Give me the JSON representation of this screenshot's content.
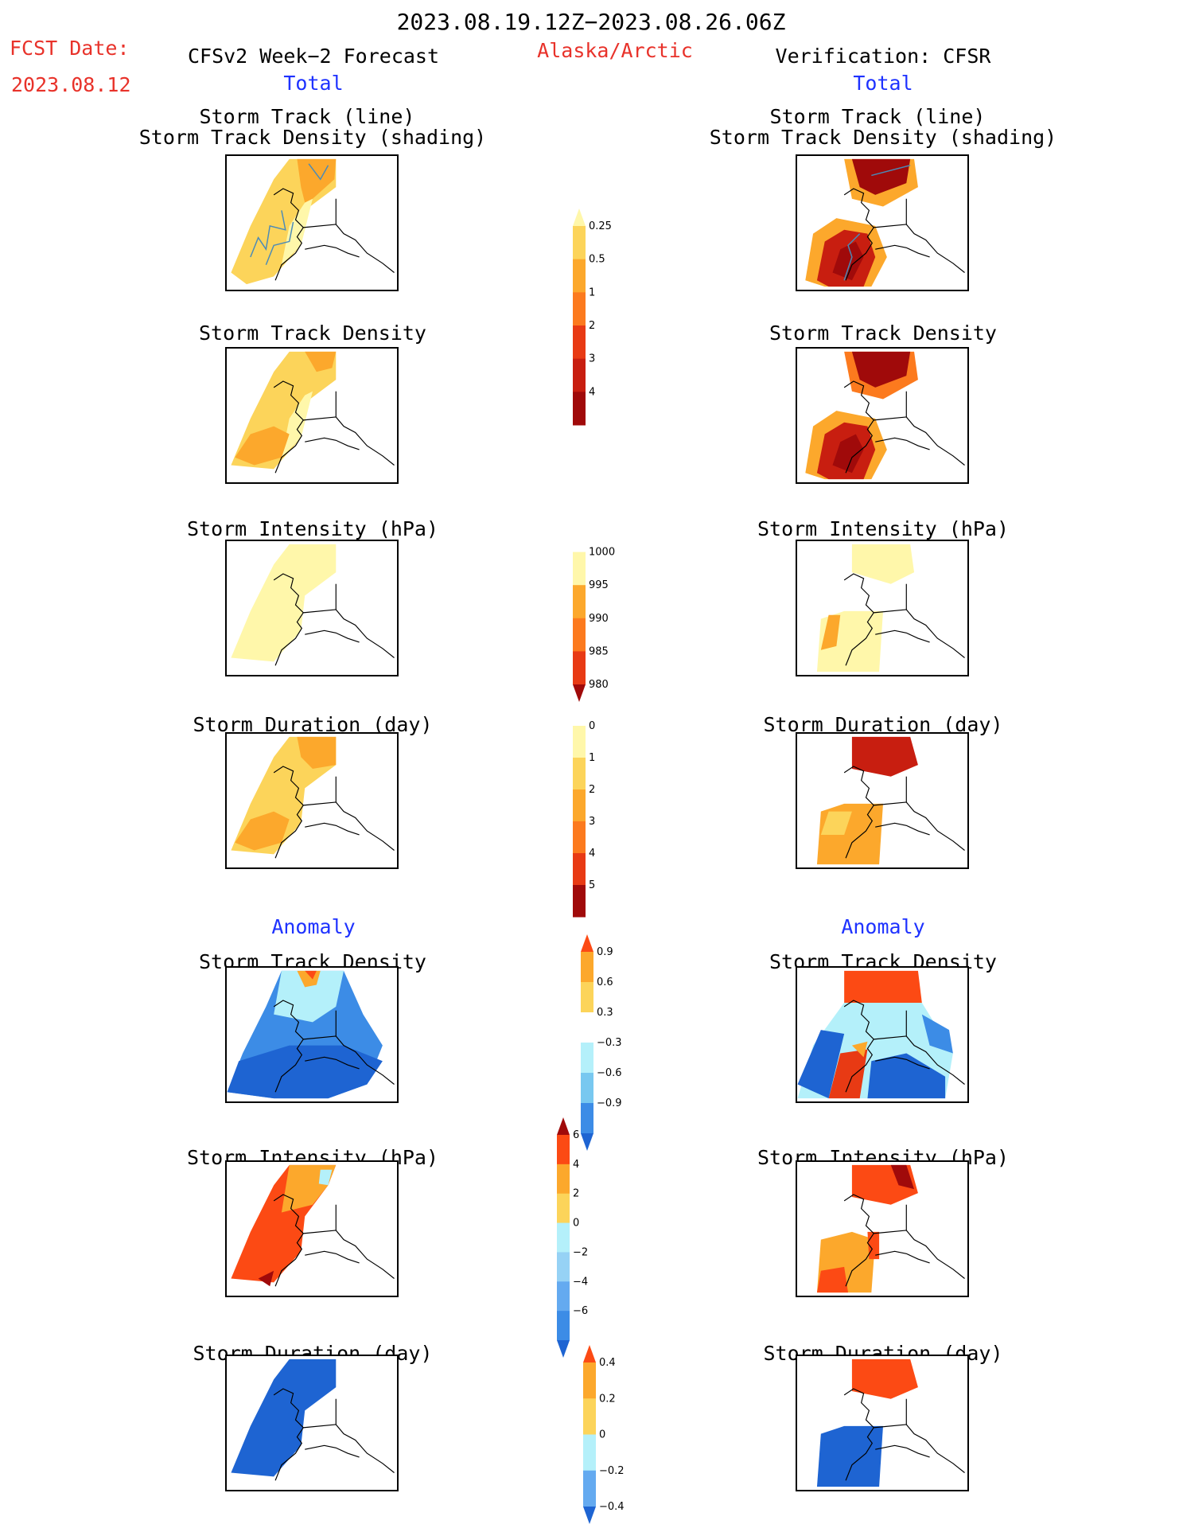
{
  "header": {
    "period": "2023.08.19.12Z−2023.08.26.06Z",
    "fcst_label": "FCST Date:",
    "fcst_date": "2023.08.12",
    "forecast_title": "CFSv2 Week−2 Forecast",
    "region": "Alaska/Arctic",
    "verification_title": "Verification: CFSR",
    "total_left": "Total",
    "total_right": "Total",
    "anomaly_left": "Anomaly",
    "anomaly_right": "Anomaly"
  },
  "panels": {
    "track_line": "Storm Track (line)",
    "track_shading": "Storm Track Density (shading)",
    "density": "Storm Track Density",
    "intensity": "Storm Intensity (hPa)",
    "duration": "Storm Duration (day)"
  },
  "colorbars": {
    "density_total": {
      "labels": [
        "0.25",
        "0.5",
        "1",
        "2",
        "3",
        "4"
      ],
      "colors": [
        "#fff7aa",
        "#fcd45a",
        "#fca82c",
        "#fc7a1e",
        "#e83a14",
        "#c81e10",
        "#a00a0a"
      ]
    },
    "intensity_total": {
      "labels": [
        "1000",
        "995",
        "990",
        "985",
        "980"
      ],
      "colors": [
        "#ffffff",
        "#fff7aa",
        "#fca82c",
        "#fc7a1e",
        "#e83a14",
        "#a00a0a"
      ]
    },
    "duration_total": {
      "labels": [
        "0",
        "1",
        "2",
        "3",
        "4",
        "5"
      ],
      "colors": [
        "#ffffff",
        "#fff7aa",
        "#fcd45a",
        "#fca82c",
        "#fc7a1e",
        "#e83a14",
        "#a00a0a"
      ]
    },
    "density_anom": {
      "labels": [
        "0.9",
        "0.6",
        "0.3",
        "−0.3",
        "−0.6",
        "−0.9"
      ],
      "colors": [
        "#fc4a14",
        "#fca82c",
        "#fcd45a",
        "#ffffff",
        "#b4f0fa",
        "#78c8f0",
        "#3c8ce6",
        "#1e64d2"
      ]
    },
    "intensity_anom": {
      "labels": [
        "6",
        "4",
        "2",
        "0",
        "−2",
        "−4",
        "−6"
      ],
      "colors": [
        "#a00a0a",
        "#fc4a14",
        "#fca82c",
        "#fcd45a",
        "#b4f0fa",
        "#96d2f5",
        "#64aaf0",
        "#3c8ce6",
        "#1e64d2"
      ]
    },
    "duration_anom": {
      "labels": [
        "0.4",
        "0.2",
        "0",
        "−0.2",
        "−0.4"
      ],
      "colors": [
        "#fc4a14",
        "#fca82c",
        "#fcd45a",
        "#b4f0fa",
        "#64aaf0",
        "#1e64d2"
      ]
    }
  },
  "legend_colors": {
    "track_line": "#4a8ab8",
    "coast": "#000000"
  }
}
